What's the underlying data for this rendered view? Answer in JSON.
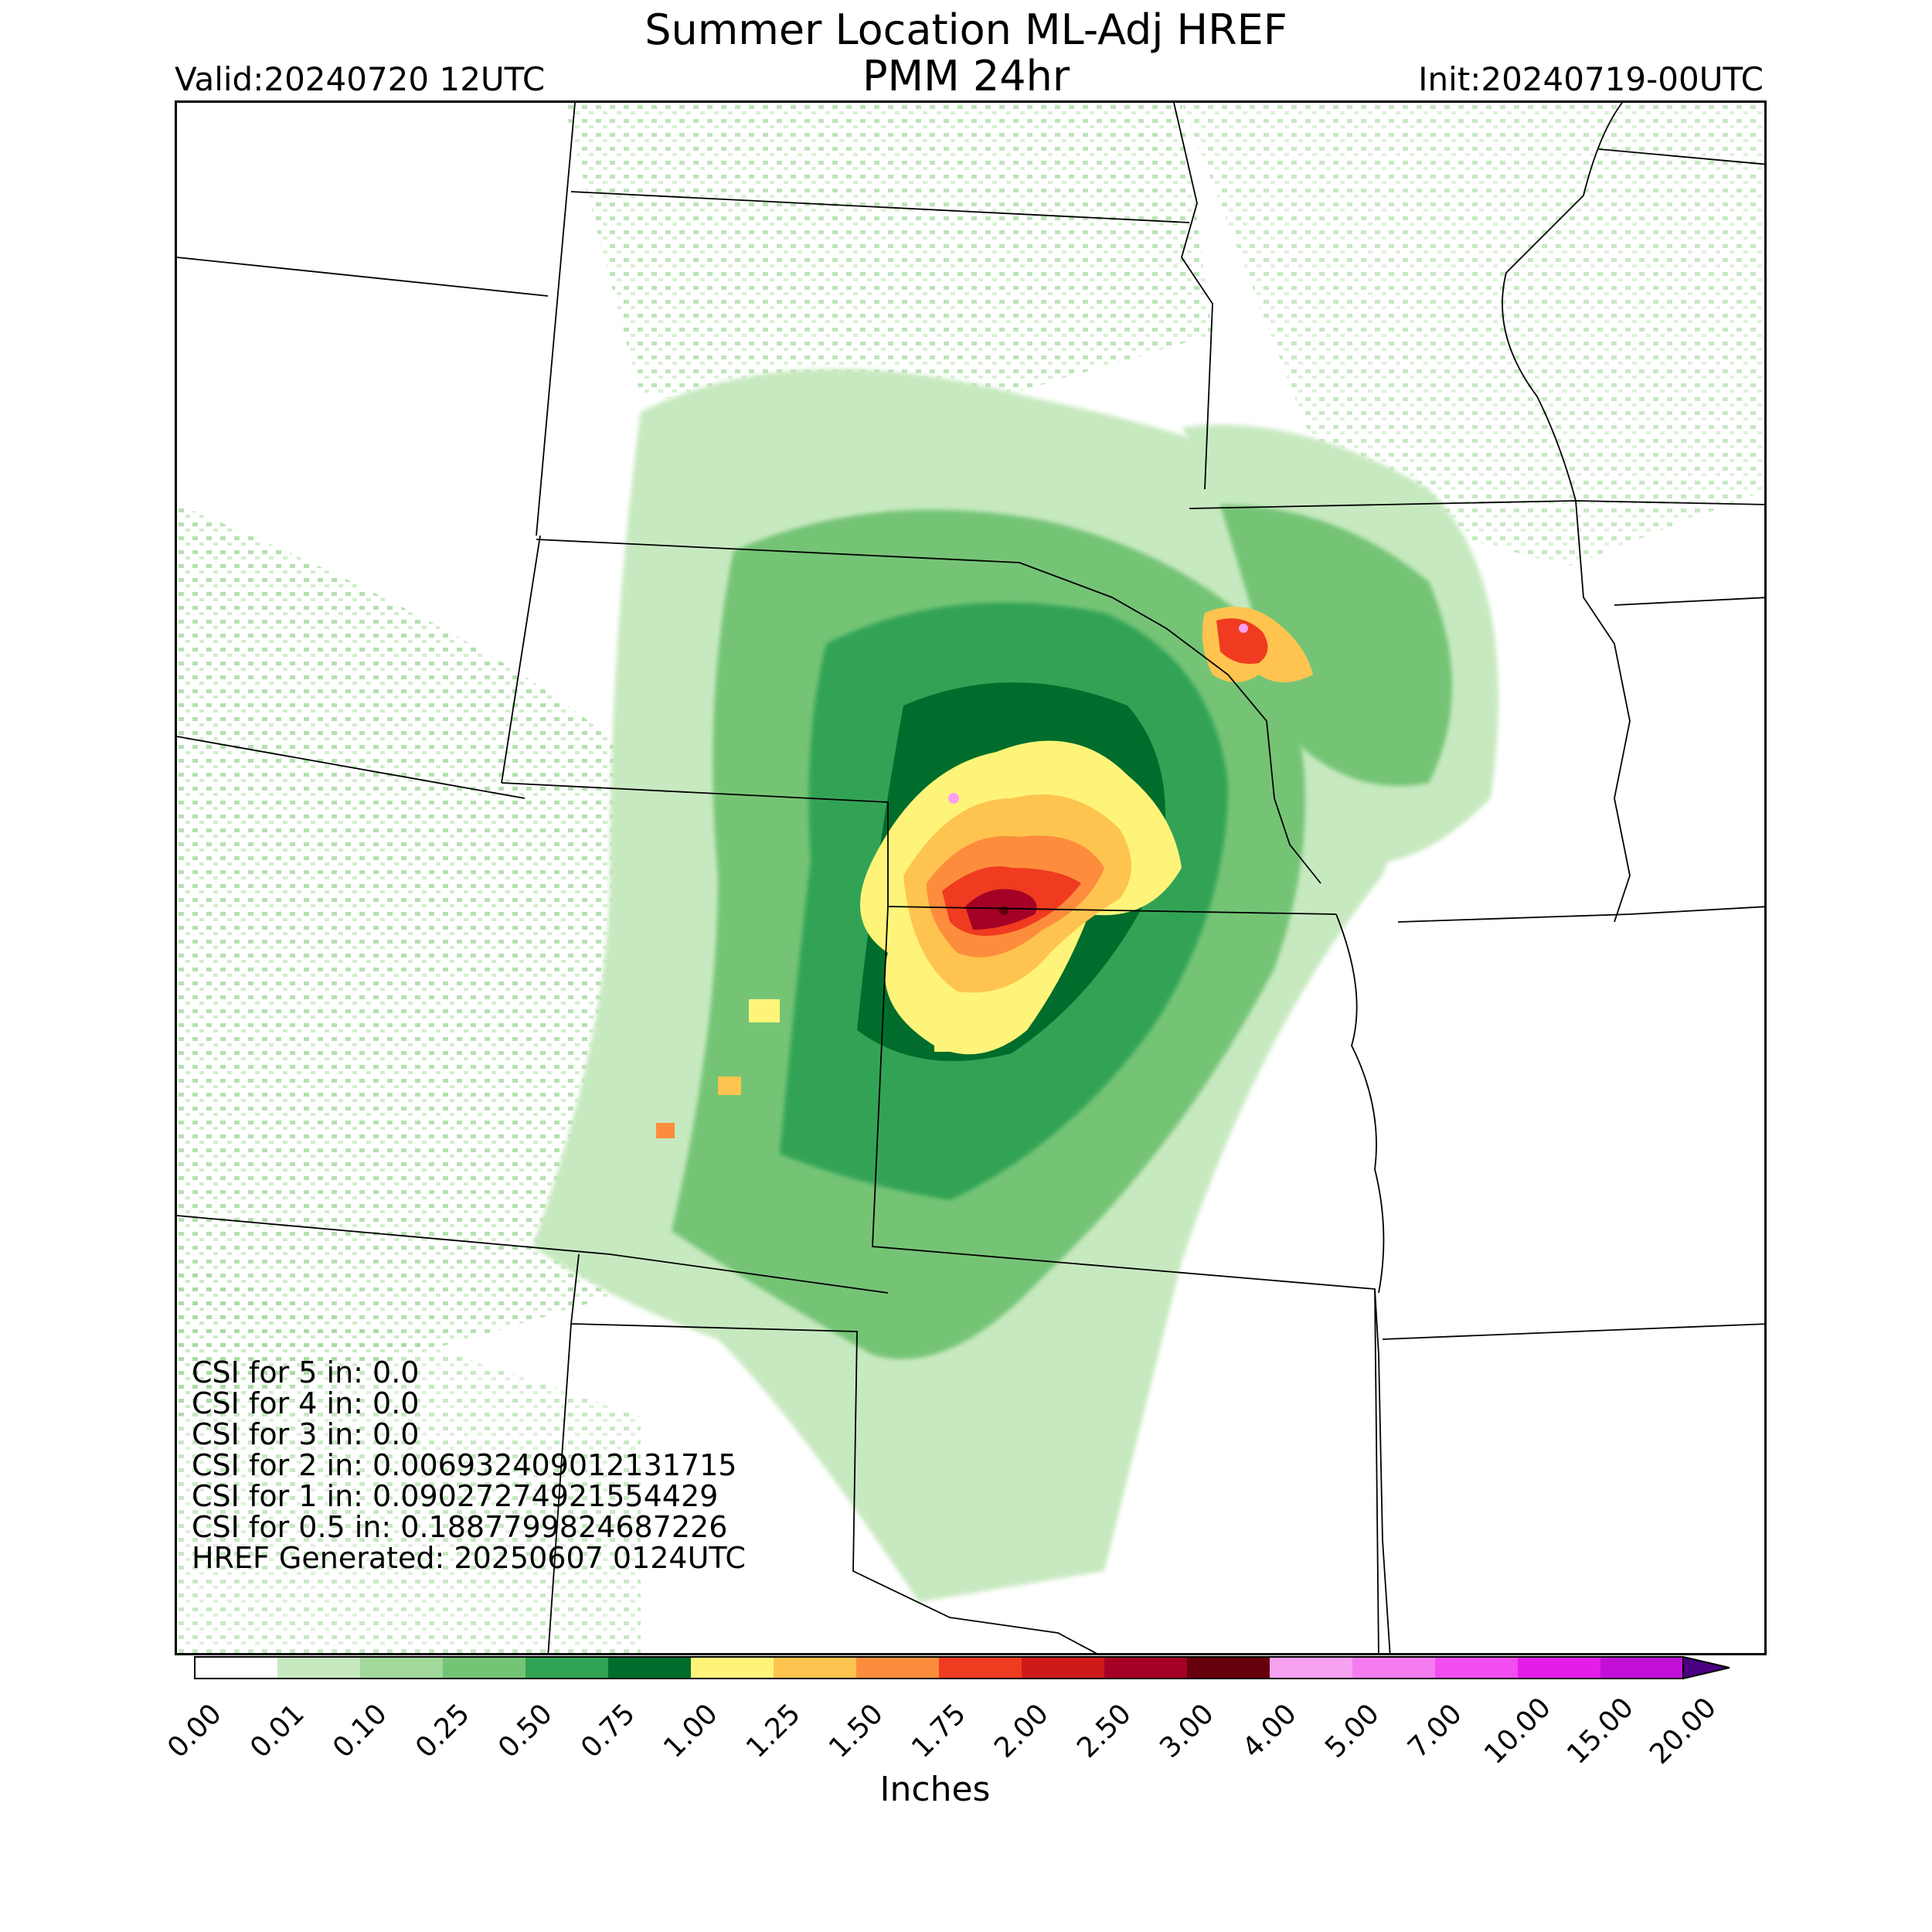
{
  "header": {
    "title_line1": "Summer Location ML-Adj HREF",
    "title_line2": "PMM 24hr",
    "valid": "Valid:20240720 12UTC",
    "init": "Init:20240719-00UTC"
  },
  "stats": [
    "CSI for 5 in: 0.0",
    "CSI for 4 in: 0.0",
    "CSI for 3 in: 0.0",
    "CSI for 2 in: 0.006932409012131715",
    "CSI for 1 in: 0.09027274921554429",
    "CSI for 0.5 in: 0.1887799824687226",
    "HREF Generated: 20250607 0124UTC"
  ],
  "colorbar": {
    "label": "Inches",
    "ticks": [
      "0.00",
      "0.01",
      "0.10",
      "0.25",
      "0.50",
      "0.75",
      "1.00",
      "1.25",
      "1.50",
      "1.75",
      "2.00",
      "2.50",
      "3.00",
      "4.00",
      "5.00",
      "7.00",
      "10.00",
      "15.00",
      "20.00"
    ],
    "colors": [
      "#ffffff",
      "#c7e9c0",
      "#a1d99b",
      "#74c476",
      "#31a354",
      "#006d2c",
      "#fff47a",
      "#fec44f",
      "#fd8d3c",
      "#f03b20",
      "#cf1a1a",
      "#a50026",
      "#67000d",
      "#f7a1f0",
      "#f57cf0",
      "#f24df0",
      "#e31ee8",
      "#c210d8",
      "#8a0bc9"
    ],
    "extend_color": "#4b0082"
  },
  "map": {
    "land_color": "#ffffff",
    "border_color": "#000000",
    "precip_levels": [
      "#c7e9c0",
      "#a1d99b",
      "#74c476",
      "#31a354",
      "#006d2c",
      "#fff47a",
      "#fec44f",
      "#fd8d3c",
      "#f03b20",
      "#cf1a1a",
      "#a50026",
      "#67000d",
      "#f7a1f0"
    ]
  }
}
